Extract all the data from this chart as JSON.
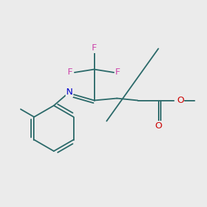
{
  "bg_color": "#ebebeb",
  "bond_color": "#2d6b6b",
  "N_color": "#0000cc",
  "F_color": "#cc44aa",
  "O_color": "#cc0000",
  "line_width": 1.4,
  "font_size": 9.5,
  "xlim": [
    0,
    10
  ],
  "ylim": [
    0,
    10
  ]
}
